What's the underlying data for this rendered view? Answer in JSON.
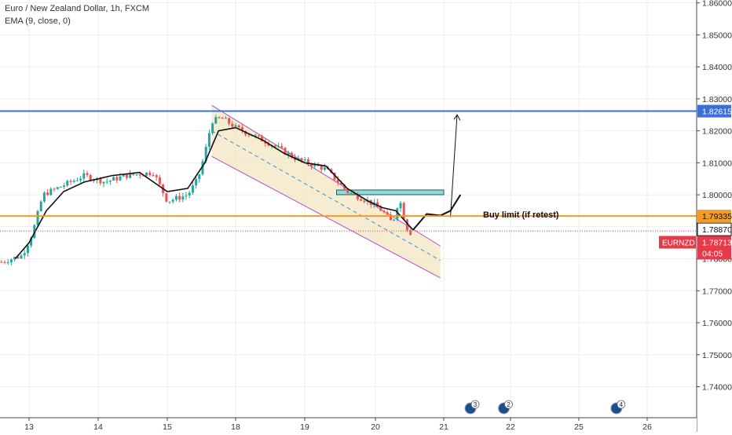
{
  "legend": {
    "symbol": "Euro / New Zealand Dollar, 1h, FXCM",
    "indicator": "EMA (9, close, 0)"
  },
  "chart_data": {
    "type": "candlestick",
    "symbol": "EURNZD",
    "timeframe": "1h",
    "ylim": [
      1.7303,
      1.8609
    ],
    "price_ticks": [
      "1.86000",
      "1.85000",
      "1.84000",
      "1.83000",
      "1.82000",
      "1.81000",
      "1.80000",
      "1.79000",
      "1.78000",
      "1.77000",
      "1.76000",
      "1.75000",
      "1.74000"
    ],
    "date_ticks": [
      {
        "label": "13",
        "day": 13
      },
      {
        "label": "14",
        "day": 14
      },
      {
        "label": "15",
        "day": 15
      },
      {
        "label": "18",
        "day": 18
      },
      {
        "label": "19",
        "day": 19
      },
      {
        "label": "20",
        "day": 20
      },
      {
        "label": "21",
        "day": 21
      },
      {
        "label": "22",
        "day": 22
      },
      {
        "label": "25",
        "day": 25
      },
      {
        "label": "26",
        "day": 26
      }
    ],
    "price_path": [
      [
        12.6,
        1.779
      ],
      [
        12.9,
        1.781
      ],
      [
        13.05,
        1.788
      ],
      [
        13.2,
        1.8
      ],
      [
        13.5,
        1.803
      ],
      [
        13.8,
        1.806
      ],
      [
        14.1,
        1.804
      ],
      [
        14.4,
        1.806
      ],
      [
        14.8,
        1.807
      ],
      [
        15.0,
        1.798
      ],
      [
        15.3,
        1.8
      ],
      [
        15.45,
        1.805
      ],
      [
        15.55,
        1.813
      ],
      [
        15.65,
        1.823
      ],
      [
        15.8,
        1.824
      ],
      [
        16.0,
        1.821
      ],
      [
        16.5,
        1.816
      ],
      [
        16.9,
        1.811
      ],
      [
        17.3,
        1.808
      ],
      [
        17.6,
        1.801
      ],
      [
        17.9,
        1.798
      ],
      [
        18.1,
        1.795
      ],
      [
        18.25,
        1.791
      ],
      [
        18.35,
        1.799
      ],
      [
        18.45,
        1.79
      ],
      [
        18.55,
        1.787
      ]
    ],
    "ema": [
      [
        12.8,
        1.78
      ],
      [
        13.0,
        1.785
      ],
      [
        13.25,
        1.795
      ],
      [
        13.5,
        1.801
      ],
      [
        13.8,
        1.804
      ],
      [
        14.2,
        1.806
      ],
      [
        14.6,
        1.807
      ],
      [
        15.0,
        1.801
      ],
      [
        15.3,
        1.802
      ],
      [
        15.55,
        1.81
      ],
      [
        15.75,
        1.82
      ],
      [
        16.0,
        1.821
      ],
      [
        16.4,
        1.817
      ],
      [
        16.7,
        1.813
      ],
      [
        17.0,
        1.81
      ],
      [
        17.3,
        1.809
      ],
      [
        17.6,
        1.802
      ],
      [
        17.9,
        1.798
      ],
      [
        18.1,
        1.796
      ],
      [
        18.3,
        1.795
      ],
      [
        18.55,
        1.789
      ]
    ],
    "channel": {
      "upper": [
        [
          15.65,
          1.828
        ],
        [
          18.95,
          1.784
        ]
      ],
      "lower": [
        [
          15.65,
          1.812
        ],
        [
          18.95,
          1.774
        ]
      ],
      "mid": [
        [
          15.65,
          1.82
        ],
        [
          18.95,
          1.7795
        ]
      ]
    },
    "resistance": {
      "price": 1.82615,
      "label": "1.82615",
      "color": "#3b6fd6"
    },
    "support": {
      "price": 1.79335,
      "label": "1.79335",
      "color": "#f59a23"
    },
    "last_close": {
      "price": 1.7887,
      "label": "1.78870"
    },
    "current": {
      "price": 1.78713,
      "label": "1.78713",
      "symbol_label": "EURNZD",
      "countdown": "04:05",
      "color": "#e8394a"
    },
    "zone": {
      "x0": 17.45,
      "x1": 19.0,
      "top": 1.8015,
      "bottom": 1.8005
    },
    "projection": [
      [
        18.55,
        1.789
      ],
      [
        18.75,
        1.794
      ],
      [
        18.95,
        1.7935
      ],
      [
        19.1,
        1.795
      ],
      [
        19.25,
        1.8
      ]
    ],
    "arrow": {
      "from": [
        19.1,
        1.793
      ],
      "to": [
        19.2,
        1.825
      ]
    },
    "annotation": "Buy limit (if retest)",
    "events": [
      {
        "day": 19.4,
        "count": "3"
      },
      {
        "day": 19.9,
        "count": "2"
      },
      {
        "day": 21.55,
        "count": "4"
      }
    ],
    "colors": {
      "up": "#26a69a",
      "down": "#ef5350",
      "ema": "#111111",
      "channel_fill": "#f3e6c1",
      "channel_line": "#b04fd0",
      "zone_fill": "#8fdada",
      "grid": "#eeeeee"
    }
  }
}
